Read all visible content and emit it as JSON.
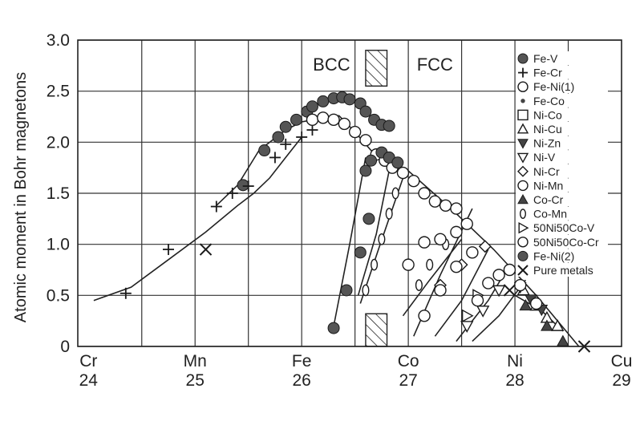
{
  "chart_data": {
    "type": "scatter",
    "title": "",
    "ylabel": "Atomic moment in Bohr magnetons",
    "xlabel": "",
    "xlim": [
      23.9,
      29.0
    ],
    "ylim": [
      0,
      3.0
    ],
    "x_ticks": [
      {
        "value": 24,
        "element": "Cr",
        "z": "24"
      },
      {
        "value": 25,
        "element": "Mn",
        "z": "25"
      },
      {
        "value": 26,
        "element": "Fe",
        "z": "26"
      },
      {
        "value": 27,
        "element": "Co",
        "z": "27"
      },
      {
        "value": 28,
        "element": "Ni",
        "z": "28"
      },
      {
        "value": 29,
        "element": "Cu",
        "z": "29"
      }
    ],
    "y_ticks": [
      "0",
      "0.5",
      "1.0",
      "1.5",
      "2.0",
      "2.5",
      "3.0"
    ],
    "y_tick_values": [
      0,
      0.5,
      1.0,
      1.5,
      2.0,
      2.5,
      3.0
    ],
    "grid": true,
    "legend_position": "right",
    "regions": {
      "bcc_label": "BCC",
      "fcc_label": "FCC",
      "transition_top": [
        26.6,
        26.8
      ],
      "transition_bottom": [
        26.6,
        26.8
      ]
    },
    "curves": [
      {
        "x": [
          24.05,
          24.4,
          24.75,
          25.1,
          25.4,
          25.55,
          25.7,
          25.85,
          26.0
        ],
        "y": [
          0.45,
          0.58,
          0.85,
          1.12,
          1.38,
          1.5,
          1.65,
          1.85,
          2.05
        ]
      },
      {
        "x": [
          25.2,
          25.4,
          25.6,
          25.85,
          26.0
        ],
        "y": [
          1.38,
          1.58,
          1.92,
          2.12,
          2.2
        ]
      },
      {
        "x": [
          26.0,
          26.35,
          26.5,
          26.65,
          27.0,
          27.4,
          27.8,
          28.2,
          28.6
        ],
        "y": [
          2.2,
          2.26,
          2.1,
          1.92,
          1.72,
          1.35,
          0.95,
          0.5,
          0.0
        ]
      },
      {
        "x": [
          26.3,
          26.45,
          26.6
        ],
        "y": [
          0.2,
          1.0,
          1.85
        ]
      },
      {
        "x": [
          26.53,
          26.7,
          26.82
        ],
        "y": [
          0.5,
          1.1,
          1.72
        ]
      },
      {
        "x": [
          26.55,
          26.72,
          26.95
        ],
        "y": [
          0.42,
          0.95,
          1.65
        ]
      },
      {
        "x": [
          27.05,
          27.3,
          27.6
        ],
        "y": [
          0.1,
          0.7,
          1.35
        ]
      },
      {
        "x": [
          26.95,
          27.2,
          27.5
        ],
        "y": [
          0.3,
          0.65,
          1.05
        ]
      },
      {
        "x": [
          27.25,
          27.5,
          27.75
        ],
        "y": [
          0.1,
          0.45,
          0.95
        ]
      },
      {
        "x": [
          27.45,
          27.75,
          27.95
        ],
        "y": [
          0.05,
          0.45,
          0.8
        ]
      },
      {
        "x": [
          27.6,
          27.85,
          28.1
        ],
        "y": [
          0.05,
          0.3,
          0.65
        ]
      },
      {
        "x": [
          28.0,
          28.25,
          28.45
        ],
        "y": [
          0.5,
          0.35,
          0.15
        ]
      }
    ],
    "series": [
      {
        "name": "Fe-V",
        "marker": "filled-circle",
        "points": [
          [
            25.45,
            1.58
          ],
          [
            25.65,
            1.92
          ],
          [
            25.78,
            2.05
          ],
          [
            25.85,
            2.15
          ],
          [
            25.95,
            2.22
          ],
          [
            26.05,
            2.3
          ],
          [
            26.1,
            2.35
          ],
          [
            26.2,
            2.4
          ],
          [
            26.3,
            2.43
          ],
          [
            26.38,
            2.44
          ],
          [
            26.45,
            2.42
          ],
          [
            26.55,
            2.38
          ],
          [
            26.6,
            2.3
          ],
          [
            26.68,
            2.22
          ],
          [
            26.75,
            2.17
          ],
          [
            26.82,
            2.16
          ]
        ]
      },
      {
        "name": "Fe-Cr",
        "marker": "plus",
        "points": [
          [
            24.35,
            0.52
          ],
          [
            24.75,
            0.95
          ],
          [
            25.2,
            1.37
          ],
          [
            25.35,
            1.5
          ],
          [
            25.5,
            1.57
          ],
          [
            25.75,
            1.85
          ],
          [
            25.85,
            1.98
          ],
          [
            26.0,
            2.05
          ],
          [
            26.1,
            2.12
          ]
        ]
      },
      {
        "name": "Fe-Ni(1)",
        "marker": "open-circle",
        "points": [
          [
            26.1,
            2.22
          ],
          [
            26.2,
            2.24
          ],
          [
            26.3,
            2.22
          ],
          [
            26.4,
            2.18
          ],
          [
            26.5,
            2.1
          ],
          [
            26.6,
            2.02
          ],
          [
            26.7,
            1.88
          ],
          [
            26.78,
            1.82
          ],
          [
            26.85,
            1.75
          ],
          [
            26.95,
            1.7
          ],
          [
            27.05,
            1.62
          ],
          [
            27.15,
            1.5
          ],
          [
            27.25,
            1.42
          ],
          [
            27.35,
            1.38
          ],
          [
            27.45,
            1.35
          ],
          [
            27.55,
            1.2
          ]
        ]
      },
      {
        "name": "Fe-Co",
        "marker": "small-dot",
        "points": []
      },
      {
        "name": "Ni-Co",
        "marker": "open-square",
        "points": []
      },
      {
        "name": "Ni-Cu",
        "marker": "open-triangle",
        "points": [
          [
            28.08,
            0.55
          ],
          [
            28.2,
            0.4
          ],
          [
            28.3,
            0.28
          ],
          [
            28.4,
            0.2
          ]
        ]
      },
      {
        "name": "Ni-Zn",
        "marker": "filled-triangle-down",
        "points": [
          [
            28.05,
            0.58
          ],
          [
            28.15,
            0.46
          ],
          [
            28.25,
            0.36
          ]
        ]
      },
      {
        "name": "Ni-V",
        "marker": "open-triangle-down",
        "points": [
          [
            27.55,
            0.2
          ],
          [
            27.7,
            0.35
          ],
          [
            27.85,
            0.55
          ]
        ]
      },
      {
        "name": "Ni-Cr",
        "marker": "open-diamond",
        "points": [
          [
            27.3,
            0.6
          ],
          [
            27.5,
            0.8
          ],
          [
            27.72,
            0.98
          ]
        ]
      },
      {
        "name": "Ni-Mn",
        "marker": "open-circle",
        "points": [
          [
            27.15,
            0.3
          ],
          [
            27.3,
            0.55
          ],
          [
            27.45,
            0.78
          ],
          [
            27.6,
            0.92
          ]
        ]
      },
      {
        "name": "Co-Cr",
        "marker": "filled-triangle",
        "points": [
          [
            28.1,
            0.4
          ],
          [
            28.3,
            0.2
          ],
          [
            28.45,
            0.05
          ]
        ]
      },
      {
        "name": "Co-Mn",
        "marker": "zero",
        "points": [
          [
            26.6,
            0.55
          ],
          [
            26.68,
            0.8
          ],
          [
            26.75,
            1.05
          ],
          [
            26.82,
            1.3
          ],
          [
            26.88,
            1.5
          ],
          [
            27.1,
            0.6
          ],
          [
            27.2,
            0.8
          ],
          [
            27.35,
            1.0
          ]
        ]
      },
      {
        "name": "50Ni50Co-V",
        "marker": "open-triangle-right",
        "points": [
          [
            27.55,
            0.3
          ],
          [
            27.65,
            0.5
          ]
        ]
      },
      {
        "name": "50Ni50Co-Cr",
        "marker": "open-circle",
        "points": [
          [
            27.0,
            0.8
          ],
          [
            27.15,
            1.02
          ],
          [
            27.3,
            1.05
          ],
          [
            27.45,
            1.12
          ],
          [
            27.65,
            0.45
          ],
          [
            27.75,
            0.62
          ],
          [
            27.85,
            0.7
          ],
          [
            27.95,
            0.75
          ],
          [
            28.05,
            0.6
          ],
          [
            28.2,
            0.42
          ]
        ]
      },
      {
        "name": "Fe-Ni(2)",
        "marker": "filled-circle",
        "points": [
          [
            26.3,
            0.18
          ],
          [
            26.42,
            0.55
          ],
          [
            26.55,
            0.92
          ],
          [
            26.63,
            1.25
          ],
          [
            26.6,
            1.72
          ],
          [
            26.65,
            1.82
          ],
          [
            26.75,
            1.9
          ],
          [
            26.82,
            1.85
          ],
          [
            26.9,
            1.8
          ]
        ]
      },
      {
        "name": "Pure metals",
        "marker": "cross",
        "points": [
          [
            25.1,
            0.95
          ],
          [
            27.95,
            0.55
          ],
          [
            28.65,
            0.0
          ]
        ]
      }
    ]
  }
}
